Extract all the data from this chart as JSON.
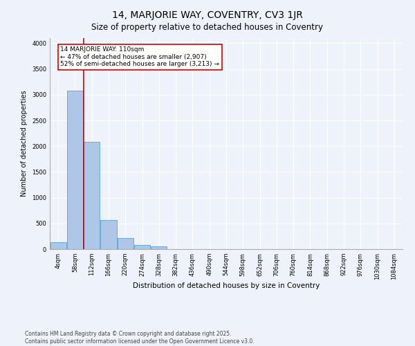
{
  "title": "14, MARJORIE WAY, COVENTRY, CV3 1JR",
  "subtitle": "Size of property relative to detached houses in Coventry",
  "xlabel": "Distribution of detached houses by size in Coventry",
  "ylabel": "Number of detached properties",
  "categories": [
    "4sqm",
    "58sqm",
    "112sqm",
    "166sqm",
    "220sqm",
    "274sqm",
    "328sqm",
    "382sqm",
    "436sqm",
    "490sqm",
    "544sqm",
    "598sqm",
    "652sqm",
    "706sqm",
    "760sqm",
    "814sqm",
    "868sqm",
    "922sqm",
    "976sqm",
    "1030sqm",
    "1084sqm"
  ],
  "values": [
    130,
    3080,
    2080,
    560,
    220,
    80,
    50,
    0,
    0,
    0,
    0,
    0,
    0,
    0,
    0,
    0,
    0,
    0,
    0,
    0,
    0
  ],
  "bar_color": "#aec6e8",
  "bar_edge_color": "#5a9fd4",
  "vline_color": "#cc0000",
  "annotation_text": "14 MARJORIE WAY: 110sqm\n← 47% of detached houses are smaller (2,907)\n52% of semi-detached houses are larger (3,213) →",
  "annotation_box_color": "#ffffff",
  "annotation_box_edge_color": "#cc0000",
  "ylim": [
    0,
    4100
  ],
  "yticks": [
    0,
    500,
    1000,
    1500,
    2000,
    2500,
    3000,
    3500,
    4000
  ],
  "background_color": "#eef2fa",
  "grid_color": "#ffffff",
  "footer": "Contains HM Land Registry data © Crown copyright and database right 2025.\nContains public sector information licensed under the Open Government Licence v3.0.",
  "title_fontsize": 10,
  "subtitle_fontsize": 8.5,
  "xlabel_fontsize": 7.5,
  "ylabel_fontsize": 7,
  "tick_fontsize": 6,
  "annotation_fontsize": 6.5,
  "footer_fontsize": 5.5
}
